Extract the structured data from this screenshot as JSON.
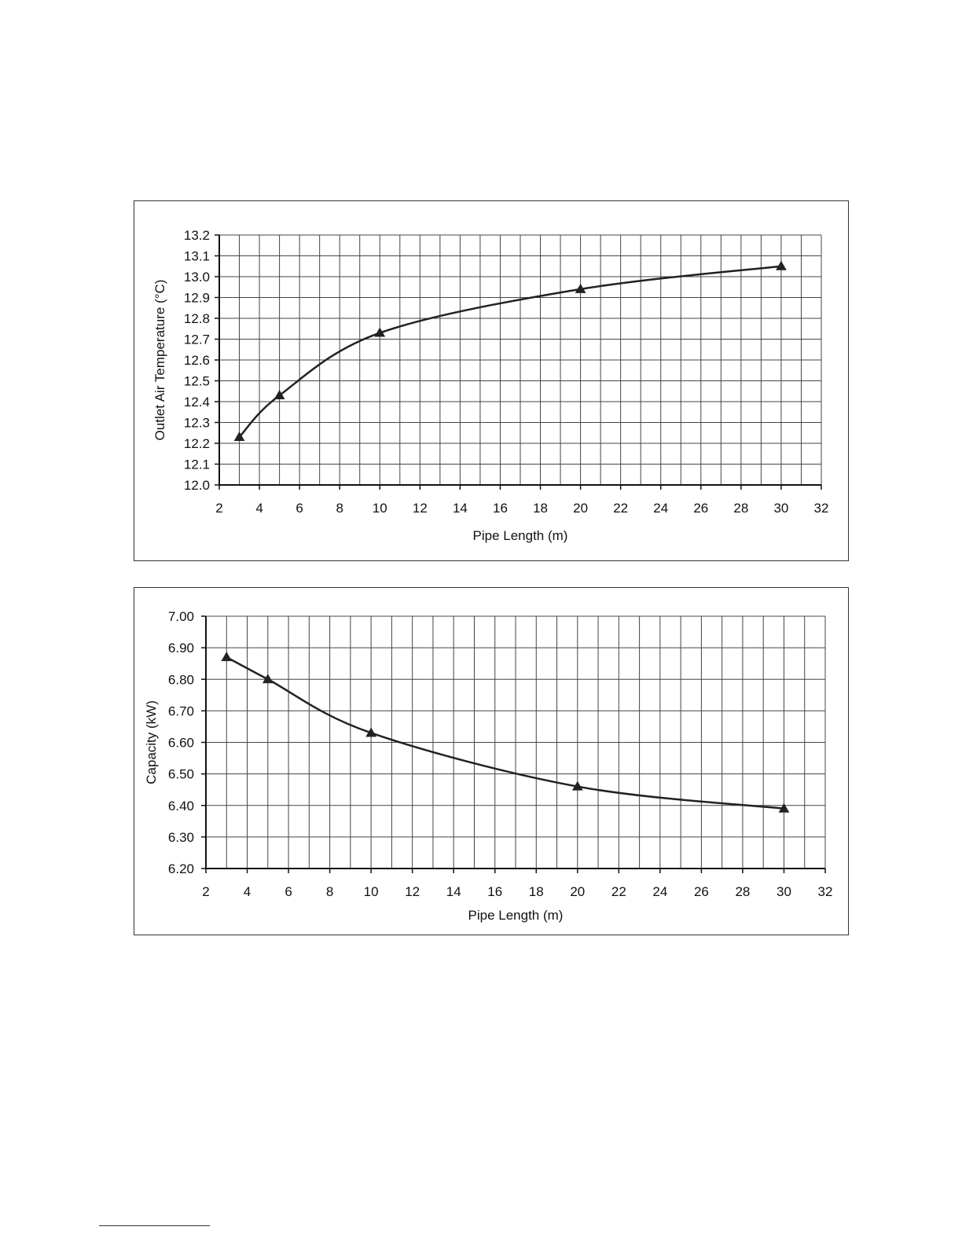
{
  "colors": {
    "line": "#222222",
    "grid": "#444444",
    "axis": "#111111",
    "frame": "#333333"
  },
  "chart_data": [
    {
      "type": "line",
      "title": "",
      "xlabel": "Pipe Length (m)",
      "ylabel": "Outlet Air Temperature (°C)",
      "xlim": [
        2,
        32
      ],
      "ylim": [
        12.0,
        13.2
      ],
      "x_ticks": [
        2,
        4,
        6,
        8,
        10,
        12,
        14,
        16,
        18,
        20,
        22,
        24,
        26,
        28,
        30,
        32
      ],
      "x_tick_labels": [
        "2",
        "4",
        "6",
        "8",
        "10",
        "12",
        "14",
        "16",
        "18",
        "20",
        "22",
        "24",
        "26",
        "28",
        "30",
        "32"
      ],
      "y_ticks": [
        12.0,
        12.1,
        12.2,
        12.3,
        12.4,
        12.5,
        12.6,
        12.7,
        12.8,
        12.9,
        13.0,
        13.1,
        13.2
      ],
      "y_tick_labels": [
        "12.0",
        "12.1",
        "12.2",
        "12.3",
        "12.4",
        "12.5",
        "12.6",
        "12.7",
        "12.8",
        "12.9",
        "13.0",
        "13.1",
        "13.2"
      ],
      "grid": true,
      "marker": "triangle",
      "series": [
        {
          "x": [
            3,
            5,
            10,
            20,
            30
          ],
          "y": [
            12.23,
            12.43,
            12.73,
            12.94,
            13.05
          ]
        }
      ]
    },
    {
      "type": "line",
      "title": "",
      "xlabel": "Pipe Length (m)",
      "ylabel": "Capacity (kW)",
      "xlim": [
        2,
        32
      ],
      "ylim": [
        6.2,
        7.0
      ],
      "x_ticks": [
        2,
        4,
        6,
        8,
        10,
        12,
        14,
        16,
        18,
        20,
        22,
        24,
        26,
        28,
        30,
        32
      ],
      "x_tick_labels": [
        "2",
        "4",
        "6",
        "8",
        "10",
        "12",
        "14",
        "16",
        "18",
        "20",
        "22",
        "24",
        "26",
        "28",
        "30",
        "32"
      ],
      "y_ticks": [
        6.2,
        6.3,
        6.4,
        6.5,
        6.6,
        6.7,
        6.8,
        6.9,
        7.0
      ],
      "y_tick_labels": [
        "6.20",
        "6.30",
        "6.40",
        "6.50",
        "6.60",
        "6.70",
        "6.80",
        "6.90",
        "7.00"
      ],
      "grid": true,
      "marker": "triangle",
      "series": [
        {
          "x": [
            3,
            5,
            10,
            20,
            30
          ],
          "y": [
            6.87,
            6.8,
            6.63,
            6.46,
            6.39
          ]
        }
      ]
    }
  ]
}
